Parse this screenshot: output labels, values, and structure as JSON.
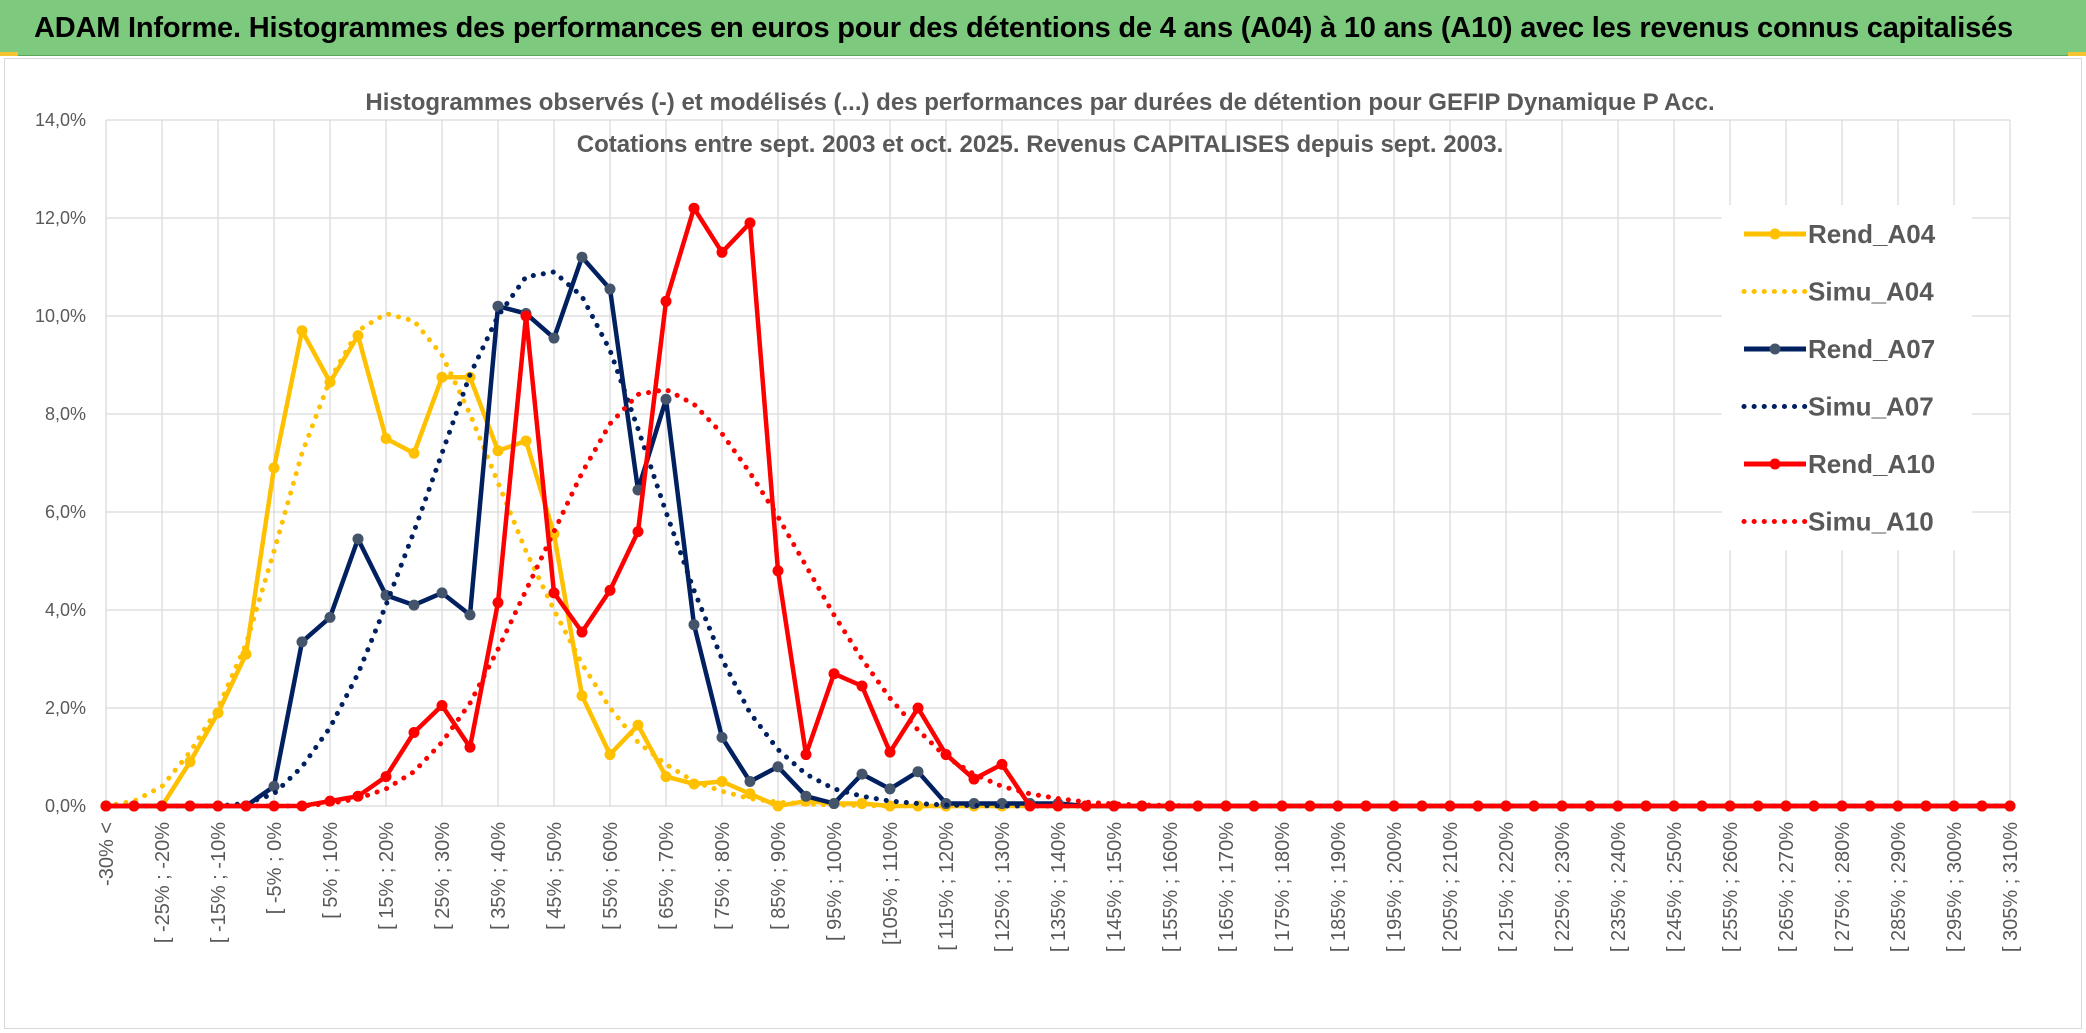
{
  "banner": {
    "title": "ADAM Informe. Histogrammes des performances en euros pour des détentions de 4 ans (A04) à 10 ans (A10) avec les revenus connus capitalisés"
  },
  "colors": {
    "banner_bg": "#7dc97d",
    "a04": "#ffc000",
    "a07": "#002060",
    "a07_marker": "#44546a",
    "a10": "#ff0000",
    "grid": "#d9d9d9",
    "axis_text": "#595959"
  },
  "chart_data": {
    "type": "line",
    "title": [
      "Histogrammes observés (-) et modélisés (...) des performances par durées de détention pour GEFIP Dynamique P Acc.",
      "Cotations entre sept. 2003 et oct. 2025. Revenus CAPITALISES depuis sept. 2003."
    ],
    "ylim": [
      0,
      14
    ],
    "yticks": [
      "0,0%",
      "2,0%",
      "4,0%",
      "6,0%",
      "8,0%",
      "10,0%",
      "12,0%",
      "14,0%"
    ],
    "ytick_values": [
      0,
      2,
      4,
      6,
      8,
      10,
      12,
      14
    ],
    "n_points": 69,
    "x_labels": [
      "-30% <",
      "[ -25% ; -20%",
      "[ -15% ; -10%",
      "[ -5% ; 0%",
      "[ 5% ; 10%",
      "[ 15% ; 20%",
      "[ 25% ; 30%",
      "[ 35% ; 40%",
      "[ 45% ; 50%",
      "[ 55% ; 60%",
      "[ 65% ; 70%",
      "[ 75% ; 80%",
      "[ 85% ; 90%",
      "[ 95% ; 100%",
      "[105% ; 110%",
      "[ 115% ; 120%",
      "[ 125% ; 130%",
      "[ 135% ; 140%",
      "[ 145% ; 150%",
      "[ 155% ; 160%",
      "[ 165% ; 170%",
      "[ 175% ; 180%",
      "[ 185% ; 190%",
      "[ 195% ; 200%",
      "[ 205% ; 210%",
      "[ 215% ; 220%",
      "[ 225% ; 230%",
      "[ 235% ; 240%",
      "[ 245% ; 250%",
      "[ 255% ; 260%",
      "[ 265% ; 270%",
      "[ 275% ; 280%",
      "[ 285% ; 290%",
      "[ 295% ; 300%",
      "[ 305% ; 310%"
    ],
    "x_label_indices": [
      0,
      2,
      4,
      6,
      8,
      10,
      12,
      14,
      16,
      18,
      20,
      22,
      24,
      26,
      28,
      30,
      32,
      34,
      36,
      38,
      40,
      42,
      44,
      46,
      48,
      50,
      52,
      54,
      56,
      58,
      60,
      62,
      64,
      66,
      68
    ],
    "series": [
      {
        "name": "Rend_A04",
        "style": "solid",
        "color": "#ffc000",
        "marker": "#ffc000",
        "values": [
          0,
          0,
          0,
          0.9,
          1.9,
          3.1,
          6.9,
          9.7,
          8.65,
          9.6,
          7.5,
          7.2,
          8.75,
          8.75,
          7.25,
          7.45,
          5.55,
          2.25,
          1.05,
          1.65,
          0.6,
          0.45,
          0.5,
          0.25,
          0,
          0.1,
          0.05,
          0.05,
          0,
          0,
          0,
          0,
          0,
          0,
          0,
          0,
          0,
          0,
          0,
          0,
          0,
          0,
          0,
          0,
          0,
          0,
          0,
          0,
          0,
          0,
          0,
          0,
          0,
          0,
          0,
          0,
          0,
          0,
          0,
          0,
          0,
          0,
          0,
          0,
          0,
          0,
          0,
          0,
          0
        ]
      },
      {
        "name": "Simu_A04",
        "style": "dotted",
        "color": "#ffc000",
        "values": [
          0,
          0.1,
          0.4,
          1.1,
          2.0,
          3.3,
          5.2,
          7.2,
          8.7,
          9.7,
          10.05,
          9.9,
          9.2,
          8.0,
          6.6,
          5.2,
          4.0,
          2.9,
          2.0,
          1.3,
          0.85,
          0.5,
          0.3,
          0.15,
          0.08,
          0.04,
          0.02,
          0.01,
          0,
          0,
          0,
          0,
          0,
          0,
          0,
          0,
          0,
          0,
          0,
          0,
          0,
          0,
          0,
          0,
          0,
          0,
          0,
          0,
          0,
          0,
          0,
          0,
          0,
          0,
          0,
          0,
          0,
          0,
          0,
          0,
          0,
          0,
          0,
          0,
          0,
          0,
          0,
          0,
          0
        ]
      },
      {
        "name": "Rend_A07",
        "style": "solid",
        "color": "#002060",
        "marker": "#44546a",
        "values": [
          0,
          0,
          0,
          0,
          0,
          0,
          0.4,
          3.35,
          3.85,
          5.45,
          4.3,
          4.1,
          4.35,
          3.9,
          10.2,
          10.05,
          9.55,
          11.2,
          10.55,
          6.45,
          8.3,
          3.7,
          1.4,
          0.5,
          0.8,
          0.2,
          0.05,
          0.65,
          0.35,
          0.7,
          0.05,
          0.05,
          0.05,
          0.05,
          0.05,
          0,
          0,
          0,
          0,
          0,
          0,
          0,
          0,
          0,
          0,
          0,
          0,
          0,
          0,
          0,
          0,
          0,
          0,
          0,
          0,
          0,
          0,
          0,
          0,
          0,
          0,
          0,
          0,
          0,
          0,
          0,
          0,
          0,
          0
        ]
      },
      {
        "name": "Simu_A07",
        "style": "dotted",
        "color": "#002060",
        "values": [
          0,
          0,
          0,
          0,
          0,
          0.05,
          0.25,
          0.8,
          1.6,
          2.7,
          4.1,
          5.6,
          7.2,
          8.8,
          10.0,
          10.8,
          10.9,
          10.4,
          9.3,
          7.7,
          6.0,
          4.4,
          3.0,
          1.9,
          1.15,
          0.65,
          0.35,
          0.2,
          0.1,
          0.05,
          0.02,
          0.01,
          0,
          0,
          0,
          0,
          0,
          0,
          0,
          0,
          0,
          0,
          0,
          0,
          0,
          0,
          0,
          0,
          0,
          0,
          0,
          0,
          0,
          0,
          0,
          0,
          0,
          0,
          0,
          0,
          0,
          0,
          0,
          0,
          0,
          0,
          0,
          0,
          0
        ]
      },
      {
        "name": "Rend_A10",
        "style": "solid",
        "color": "#ff0000",
        "marker": "#ff0000",
        "values": [
          0,
          0,
          0,
          0,
          0,
          0,
          0,
          0,
          0.1,
          0.2,
          0.6,
          1.5,
          2.05,
          1.2,
          4.15,
          10.0,
          4.35,
          3.55,
          4.4,
          5.6,
          10.3,
          12.2,
          11.3,
          11.9,
          4.8,
          1.05,
          2.7,
          2.45,
          1.1,
          2.0,
          1.05,
          0.55,
          0.85,
          0,
          0,
          0,
          0,
          0,
          0,
          0,
          0,
          0,
          0,
          0,
          0,
          0,
          0,
          0,
          0,
          0,
          0,
          0,
          0,
          0,
          0,
          0,
          0,
          0,
          0,
          0,
          0,
          0,
          0,
          0,
          0,
          0,
          0,
          0,
          0
        ]
      },
      {
        "name": "Simu_A10",
        "style": "dotted",
        "color": "#ff0000",
        "values": [
          0,
          0,
          0,
          0,
          0,
          0,
          0,
          0,
          0.05,
          0.15,
          0.35,
          0.7,
          1.3,
          2.1,
          3.2,
          4.4,
          5.6,
          6.8,
          7.8,
          8.4,
          8.5,
          8.2,
          7.6,
          6.8,
          5.9,
          4.9,
          3.9,
          3.0,
          2.2,
          1.55,
          1.0,
          0.65,
          0.4,
          0.25,
          0.15,
          0.08,
          0.04,
          0.02,
          0.01,
          0,
          0,
          0,
          0,
          0,
          0,
          0,
          0,
          0,
          0,
          0,
          0,
          0,
          0,
          0,
          0,
          0,
          0,
          0,
          0,
          0,
          0,
          0,
          0,
          0,
          0,
          0,
          0,
          0,
          0
        ]
      }
    ],
    "legend": [
      "Rend_A04",
      "Simu_A04",
      "Rend_A07",
      "Simu_A07",
      "Rend_A10",
      "Simu_A10"
    ],
    "legend_position": "right"
  }
}
